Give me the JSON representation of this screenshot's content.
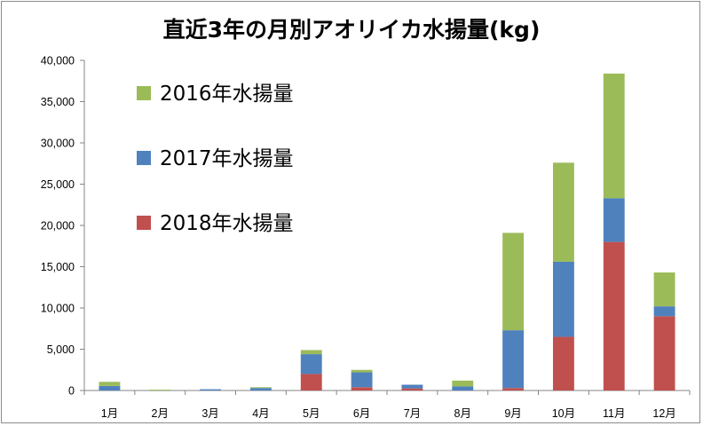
{
  "chart_data": {
    "type": "bar",
    "stacked": true,
    "title": "直近3年の月別アオリイカ水揚量(kg)",
    "xlabel": "",
    "ylabel": "",
    "categories": [
      "1月",
      "2月",
      "3月",
      "4月",
      "5月",
      "6月",
      "7月",
      "8月",
      "9月",
      "10月",
      "11月",
      "12月"
    ],
    "ylim": [
      0,
      40000
    ],
    "yticks": [
      "0",
      "5,000",
      "10,000",
      "15,000",
      "20,000",
      "25,000",
      "30,000",
      "35,000",
      "40,000"
    ],
    "grid": false,
    "legend_position": "top-left",
    "series": [
      {
        "name": "2018年水揚量",
        "color": "#c0504d",
        "values": [
          0,
          0,
          0,
          0,
          2000,
          400,
          250,
          0,
          300,
          6500,
          18000,
          9000
        ]
      },
      {
        "name": "2017年水揚量",
        "color": "#4f81bd",
        "values": [
          550,
          0,
          150,
          300,
          2400,
          1800,
          450,
          500,
          7000,
          9100,
          5300,
          1200
        ]
      },
      {
        "name": "2016年水揚量",
        "color": "#9bbb59",
        "values": [
          500,
          100,
          0,
          100,
          500,
          300,
          0,
          700,
          11800,
          12000,
          15100,
          4100
        ]
      }
    ],
    "legend_order": [
      2,
      1,
      0
    ]
  }
}
